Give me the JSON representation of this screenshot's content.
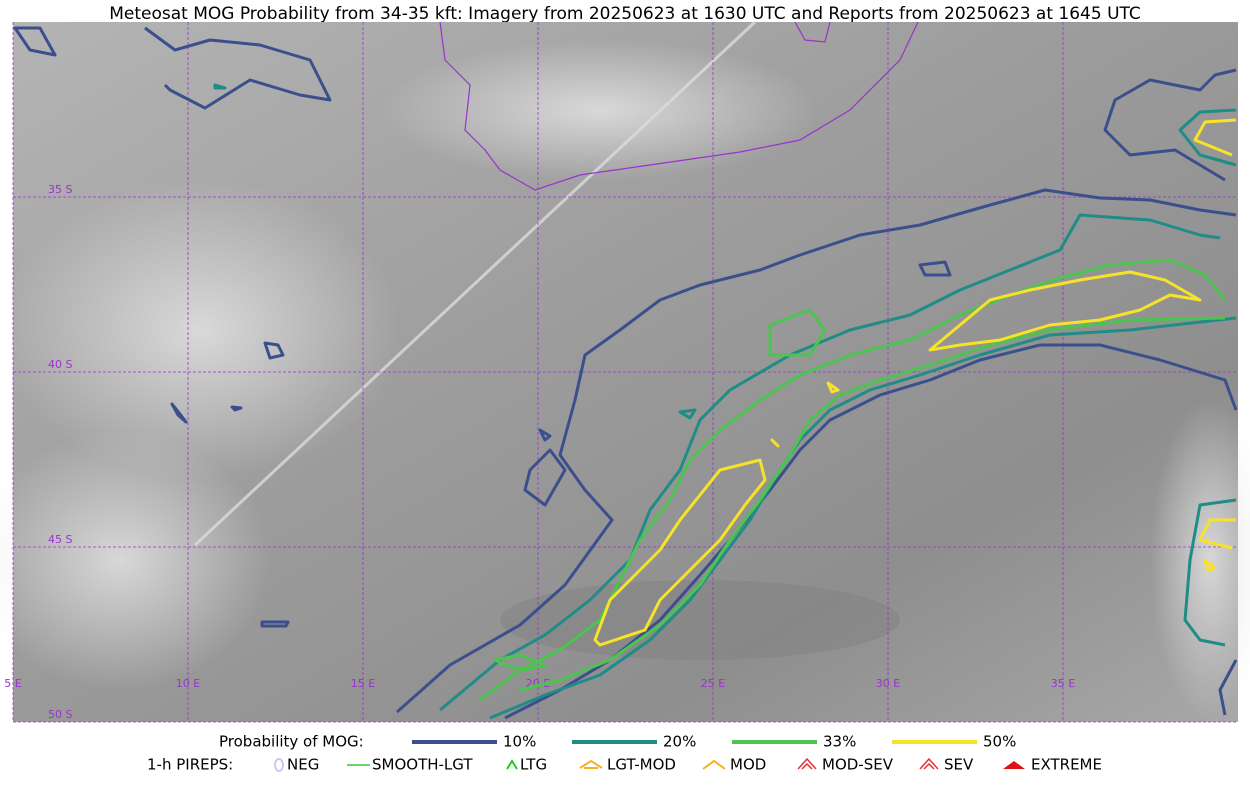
{
  "title": "Meteosat MOG Probability from 34-35 kft: Imagery from 20250623 at 1630 UTC and Reports from 20250623 at 1645 UTC",
  "map": {
    "lon_labels": [
      "5 E",
      "10 E",
      "15 E",
      "20 E",
      "25 E",
      "30 E",
      "35 E"
    ],
    "lat_labels": [
      "35 S",
      "40 S",
      "45 S",
      "50 S"
    ]
  },
  "legend": {
    "probability": {
      "title": "Probability of MOG:",
      "items": [
        {
          "label": "10%",
          "color": "#3b4f8c"
        },
        {
          "label": "20%",
          "color": "#1f8c86"
        },
        {
          "label": "33%",
          "color": "#4cc450"
        },
        {
          "label": "50%",
          "color": "#f7e22a"
        }
      ]
    },
    "pireps": {
      "title": "1-h PIREPS:",
      "items": [
        {
          "label": "NEG",
          "color": "#c8c8f0"
        },
        {
          "label": "SMOOTH-LGT",
          "color": "#33cc33"
        },
        {
          "label": "LTG",
          "color": "#22cc22"
        },
        {
          "label": "LGT-MOD",
          "color": "#f5b21e"
        },
        {
          "label": "MOD",
          "color": "#f5b21e"
        },
        {
          "label": "MOD-SEV",
          "color": "#e83030"
        },
        {
          "label": "SEV",
          "color": "#e83030"
        },
        {
          "label": "EXTREME",
          "color": "#e01010"
        }
      ]
    }
  }
}
